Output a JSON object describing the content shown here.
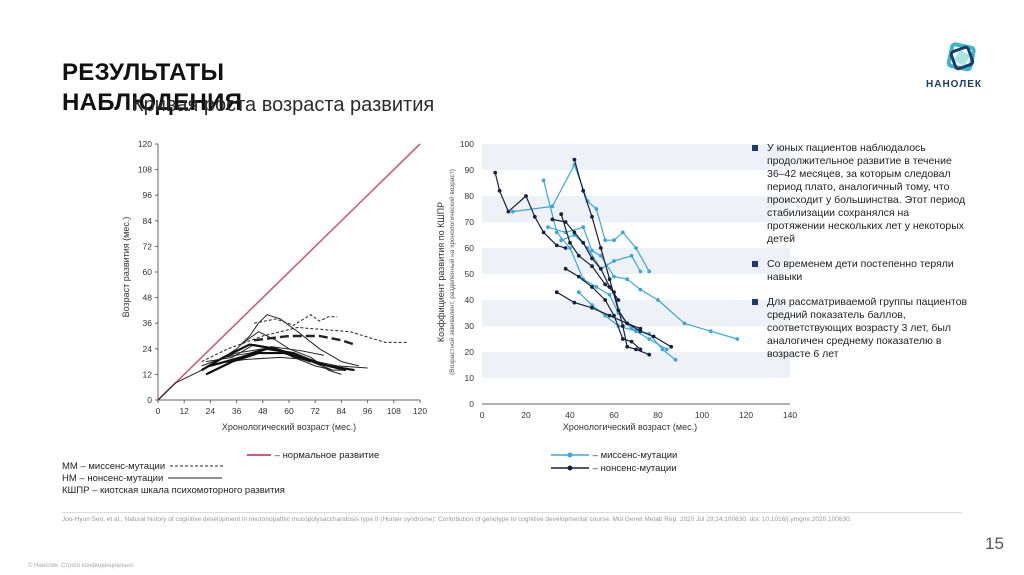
{
  "title": {
    "line1": "РЕЗУЛЬТАТЫ",
    "line2": "НАБЛЮДЕНИЯ"
  },
  "subtitle": "Кривая роста возраста развития",
  "logo": {
    "text": "НАНОЛЕК",
    "colors": [
      "#3fb5c8",
      "#1a3b6e",
      "#6fd3c8"
    ]
  },
  "bullets": [
    "У юных пациентов наблюдалось продолжительное развитие в течение 36–42 месяцев, за которым следовал период плато, аналогичный тому, что происходит у большинства. Этот период стабилизации сохранялся на протяжении нескольких лет у некоторых детей",
    "Со временем дети постепенно теряли навыки",
    "Для рассматриваемой группы пациентов средний показатель баллов, соответствующих возрасту 3 лет, был аналогичен среднему показателю в возрасте 6 лет"
  ],
  "reference": "Joo-Hyun Seo, et al., Natural history of cognitive development in neuronopathic mucopolysaccharidosis type II (Hunter syndrome): Contribution of genotype to cognitive developmental course. Mol Genet Metab Rep. 2020 Jul 29;24:100630. doi: 10.1016/j.ymgmr.2020.100630.",
  "page_number": "15",
  "footer": "© Нанолек. Строго конфиденциально",
  "legend_left": [
    "ММ – миссенс-мутации",
    "НМ – нонсенс-мутации",
    "КШПР – киотская шкала психомоторного развития"
  ],
  "legend_normal": "– нормальное развитие",
  "legend_right": [
    "– миссенс-мутации",
    "– нонсенс-мутации"
  ],
  "chart_data": [
    {
      "type": "line",
      "title": "",
      "xlabel": "Хронологический возраст (мес.)",
      "ylabel": "Возраст развития (мес.)",
      "xlim": [
        0,
        120
      ],
      "ylim": [
        0,
        120
      ],
      "xticks": [
        0,
        12,
        24,
        36,
        48,
        60,
        72,
        84,
        96,
        108,
        120
      ],
      "yticks": [
        0,
        12,
        24,
        36,
        48,
        60,
        72,
        84,
        96,
        108,
        120
      ],
      "grid": false,
      "series": [
        {
          "name": "нормальное развитие",
          "color": "#c9607a",
          "style": "solid",
          "width": 1.6,
          "points": [
            [
              0,
              0
            ],
            [
              120,
              120
            ]
          ]
        },
        {
          "name": "ММ",
          "color": "#222222",
          "style": "dashed",
          "width": 1,
          "points": [
            [
              20,
              18
            ],
            [
              32,
              24
            ],
            [
              48,
              30
            ],
            [
              64,
              34
            ],
            [
              76,
              33
            ],
            [
              88,
              32
            ],
            [
              104,
              27
            ],
            [
              114,
              27
            ]
          ]
        },
        {
          "name": "ММ",
          "color": "#222222",
          "style": "dashed",
          "width": 1,
          "points": [
            [
              44,
              36
            ],
            [
              54,
              38
            ],
            [
              62,
              35
            ],
            [
              70,
              40
            ],
            [
              74,
              37
            ],
            [
              78,
              39
            ],
            [
              82,
              39
            ]
          ]
        },
        {
          "name": "средняя",
          "color": "#222222",
          "style": "longdash",
          "width": 2.4,
          "points": [
            [
              44,
              28
            ],
            [
              60,
              30
            ],
            [
              74,
              30
            ],
            [
              84,
              28
            ],
            [
              90,
              26
            ]
          ]
        },
        {
          "name": "НМ",
          "color": "#222222",
          "style": "solid",
          "width": 1,
          "points": [
            [
              0,
              0
            ],
            [
              8,
              8
            ],
            [
              16,
              12
            ],
            [
              24,
              16
            ],
            [
              36,
              24
            ],
            [
              42,
              30
            ],
            [
              46,
              36
            ],
            [
              50,
              40
            ],
            [
              56,
              38
            ],
            [
              64,
              32
            ],
            [
              74,
              24
            ],
            [
              84,
              18
            ],
            [
              92,
              16
            ]
          ]
        },
        {
          "name": "НМ",
          "color": "#222222",
          "style": "solid",
          "width": 1,
          "points": [
            [
              20,
              16
            ],
            [
              36,
              22
            ],
            [
              48,
              24
            ],
            [
              60,
              22
            ],
            [
              70,
              18
            ],
            [
              80,
              14
            ],
            [
              86,
              14
            ]
          ]
        },
        {
          "name": "НМ",
          "color": "#222222",
          "style": "solid",
          "width": 1,
          "points": [
            [
              22,
              18
            ],
            [
              34,
              20
            ],
            [
              44,
              26
            ],
            [
              54,
              24
            ],
            [
              62,
              20
            ],
            [
              72,
              16
            ],
            [
              80,
              14
            ]
          ]
        },
        {
          "name": "НМ",
          "color": "#222222",
          "style": "solid",
          "width": 1,
          "points": [
            [
              26,
              17
            ],
            [
              40,
              19
            ],
            [
              56,
              20
            ],
            [
              68,
              19
            ],
            [
              82,
              16
            ],
            [
              96,
              15
            ]
          ]
        },
        {
          "name": "НМ",
          "color": "#222222",
          "style": "solid",
          "width": 1,
          "points": [
            [
              30,
              20
            ],
            [
              42,
              22
            ],
            [
              52,
              25
            ],
            [
              66,
              23
            ],
            [
              76,
              21
            ]
          ]
        },
        {
          "name": "НМ",
          "color": "#222222",
          "style": "solid",
          "width": 1,
          "points": [
            [
              38,
              26
            ],
            [
              46,
              32
            ],
            [
              54,
              28
            ],
            [
              60,
              24
            ],
            [
              70,
              20
            ],
            [
              78,
              14
            ],
            [
              84,
              12
            ]
          ]
        },
        {
          "name": "КШПР",
          "color": "#111111",
          "style": "solid",
          "width": 2.2,
          "points": [
            [
              20,
              14
            ],
            [
              30,
              20
            ],
            [
              42,
              26
            ],
            [
              54,
              24
            ],
            [
              66,
              20
            ],
            [
              78,
              16
            ],
            [
              90,
              14
            ]
          ]
        },
        {
          "name": "КШПР",
          "color": "#111111",
          "style": "solid",
          "width": 2.2,
          "points": [
            [
              22,
              12
            ],
            [
              34,
              18
            ],
            [
              46,
              22
            ],
            [
              58,
              22
            ],
            [
              70,
              18
            ]
          ]
        },
        {
          "name": "КШПР",
          "color": "#111111",
          "style": "solid",
          "width": 2.2,
          "points": [
            [
              24,
              16
            ],
            [
              38,
              20
            ],
            [
              50,
              24
            ],
            [
              62,
              22
            ],
            [
              74,
              17
            ],
            [
              86,
              14
            ]
          ]
        }
      ]
    },
    {
      "type": "line",
      "title": "",
      "xlabel": "Хронологический возраст (мес.)",
      "ylabel": "Коэффициент развития по КШПР",
      "ylabel2": "(Возрастной эквивалент, разделенный на хронологический возраст)",
      "xlim": [
        0,
        140
      ],
      "ylim": [
        0,
        100
      ],
      "xticks": [
        0,
        20,
        40,
        60,
        80,
        100,
        120,
        140
      ],
      "yticks": [
        0,
        10,
        20,
        30,
        40,
        50,
        60,
        70,
        80,
        90,
        100
      ],
      "grid": "striped",
      "series": [
        {
          "name": "миссенс-мутации",
          "color": "#3aa8d6",
          "points": [
            [
              14,
              74
            ],
            [
              32,
              76
            ],
            [
              42,
              92
            ],
            [
              48,
              78
            ],
            [
              52,
              75
            ],
            [
              56,
              63
            ],
            [
              60,
              63
            ],
            [
              64,
              66
            ],
            [
              70,
              60
            ],
            [
              76,
              51
            ]
          ]
        },
        {
          "name": "миссенс-мутации",
          "color": "#3aa8d6",
          "points": [
            [
              28,
              86
            ],
            [
              34,
              66
            ],
            [
              40,
              60
            ],
            [
              46,
              48
            ],
            [
              52,
              45
            ],
            [
              58,
              42
            ],
            [
              62,
              35
            ],
            [
              68,
              29
            ],
            [
              76,
              27
            ],
            [
              82,
              21
            ],
            [
              88,
              17
            ]
          ]
        },
        {
          "name": "миссенс-мутации",
          "color": "#3aa8d6",
          "points": [
            [
              30,
              68
            ],
            [
              38,
              66
            ],
            [
              46,
              68
            ],
            [
              50,
              59
            ],
            [
              54,
              57
            ],
            [
              60,
              49
            ],
            [
              66,
              48
            ],
            [
              72,
              44
            ],
            [
              80,
              40
            ],
            [
              92,
              31
            ],
            [
              104,
              28
            ],
            [
              116,
              25
            ]
          ]
        },
        {
          "name": "миссенс-мутации",
          "color": "#3aa8d6",
          "points": [
            [
              36,
              63
            ],
            [
              42,
              65
            ],
            [
              48,
              60
            ],
            [
              54,
              52
            ],
            [
              60,
              55
            ],
            [
              68,
              57
            ],
            [
              72,
              51
            ]
          ]
        },
        {
          "name": "миссенс-мутации",
          "color": "#3aa8d6",
          "points": [
            [
              44,
              43
            ],
            [
              50,
              38
            ],
            [
              56,
              34
            ],
            [
              62,
              30
            ],
            [
              70,
              28
            ],
            [
              76,
              25
            ],
            [
              84,
              21
            ]
          ]
        },
        {
          "name": "нонсенс-мутации",
          "color": "#15213f",
          "points": [
            [
              6,
              89
            ],
            [
              8,
              82
            ],
            [
              12,
              74
            ],
            [
              20,
              80
            ],
            [
              24,
              72
            ],
            [
              28,
              66
            ],
            [
              34,
              61
            ],
            [
              38,
              60
            ]
          ]
        },
        {
          "name": "нонсенс-мутации",
          "color": "#15213f",
          "points": [
            [
              32,
              71
            ],
            [
              38,
              70
            ],
            [
              42,
              66
            ],
            [
              46,
              62
            ],
            [
              50,
              56
            ],
            [
              54,
              52
            ],
            [
              58,
              45
            ],
            [
              62,
              40
            ]
          ]
        },
        {
          "name": "нонсенс-мутации",
          "color": "#15213f",
          "points": [
            [
              34,
              43
            ],
            [
              42,
              39
            ],
            [
              50,
              37
            ],
            [
              58,
              34
            ],
            [
              66,
              31
            ],
            [
              72,
              29
            ]
          ]
        },
        {
          "name": "нонсенс-мутации",
          "color": "#15213f",
          "points": [
            [
              36,
              73
            ],
            [
              40,
              62
            ],
            [
              44,
              57
            ],
            [
              50,
              53
            ],
            [
              56,
              46
            ],
            [
              60,
              43
            ],
            [
              64,
              30
            ],
            [
              66,
              22
            ],
            [
              70,
              21
            ],
            [
              76,
              19
            ]
          ]
        },
        {
          "name": "нонсенс-мутации",
          "color": "#15213f",
          "points": [
            [
              42,
              94
            ],
            [
              46,
              82
            ],
            [
              50,
              72
            ],
            [
              54,
              60
            ],
            [
              58,
              48
            ],
            [
              62,
              36
            ],
            [
              66,
              31
            ],
            [
              72,
              28
            ],
            [
              78,
              26
            ],
            [
              86,
              22
            ]
          ]
        },
        {
          "name": "нонсенс-мутации",
          "color": "#15213f",
          "points": [
            [
              38,
              52
            ],
            [
              44,
              49
            ],
            [
              50,
              45
            ],
            [
              56,
              40
            ],
            [
              60,
              34
            ],
            [
              64,
              25
            ],
            [
              68,
              24
            ],
            [
              72,
              21
            ]
          ]
        }
      ]
    }
  ]
}
